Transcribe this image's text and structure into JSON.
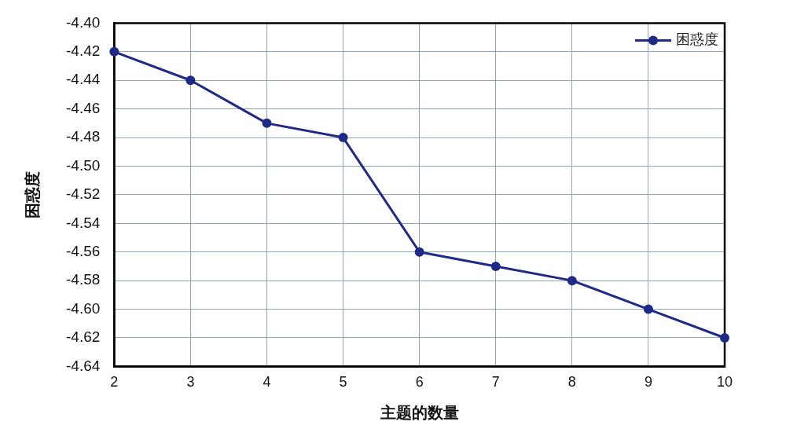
{
  "chart_data": {
    "type": "line",
    "xlabel": "主题的数量",
    "ylabel": "困惑度",
    "x": [
      2,
      3,
      4,
      5,
      6,
      7,
      8,
      9,
      10
    ],
    "series": [
      {
        "name": "困惑度",
        "color": "#1f2a87",
        "values": [
          -4.42,
          -4.44,
          -4.47,
          -4.48,
          -4.56,
          -4.57,
          -4.58,
          -4.6,
          -4.62
        ]
      }
    ],
    "xlim": [
      2,
      10
    ],
    "xticks": [
      2,
      3,
      4,
      5,
      6,
      7,
      8,
      9,
      10
    ],
    "ylim": [
      -4.64,
      -4.4
    ],
    "yticks": [
      -4.64,
      -4.62,
      {
        "value": -4.6,
        "label": "-4.60"
      },
      -4.58,
      -4.56,
      -4.54,
      -4.52,
      {
        "value": -4.5,
        "label": "-4.50"
      },
      -4.48,
      -4.46,
      -4.44,
      -4.42,
      {
        "value": -4.4,
        "label": "-4.40"
      }
    ],
    "grid": true,
    "legend": "top right",
    "marker": "circle",
    "line_style": "solid"
  }
}
